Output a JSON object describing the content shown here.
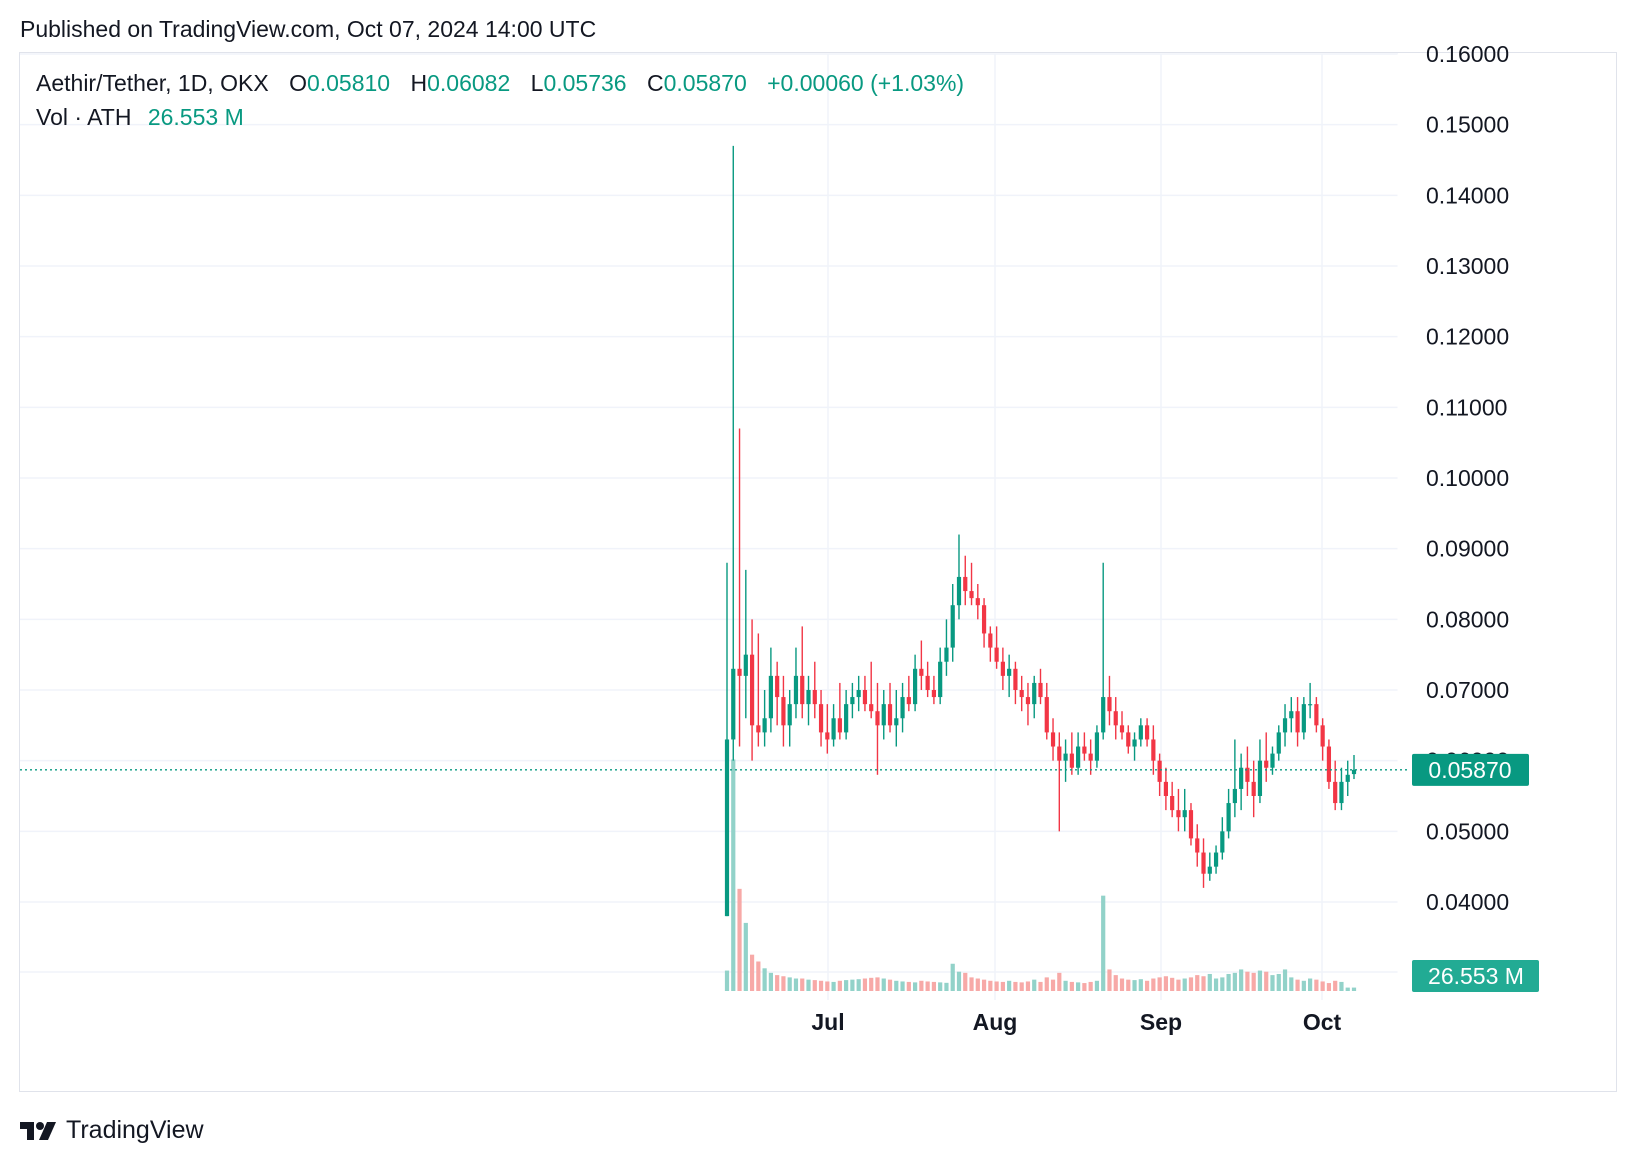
{
  "header": {
    "published": "Published on TradingView.com, Oct 07, 2024 14:00 UTC"
  },
  "legend": {
    "symbol": "Aethir/Tether, 1D, OKX",
    "o_label": "O",
    "o_value": "0.05810",
    "h_label": "H",
    "h_value": "0.06082",
    "l_label": "L",
    "l_value": "0.05736",
    "c_label": "C",
    "c_value": "0.05870",
    "change": "+0.00060 (+1.03%)",
    "vol_label": "Vol · ATH",
    "vol_value": "26.553 M"
  },
  "footer": {
    "brand": "TradingView"
  },
  "colors": {
    "up": "#089981",
    "down": "#f23645",
    "vol_up": "#92d2c9",
    "vol_down": "#f7a9a7",
    "grid": "#f0f3fa",
    "text": "#131722"
  },
  "chart_data": {
    "type": "candlestick",
    "ylim": [
      0.035,
      0.16
    ],
    "ytick_labels": [
      "0.04000",
      "0.05000",
      "0.06000",
      "0.07000",
      "0.08000",
      "0.09000",
      "0.10000",
      "0.11000",
      "0.12000",
      "0.13000",
      "0.14000",
      "0.15000",
      "0.16000"
    ],
    "xtick_labels": [
      "Jul",
      "Aug",
      "Sep",
      "Oct"
    ],
    "last_price_label": "0.05870",
    "last_price": 0.0587,
    "volume_label": "26.553 M",
    "candles": [
      [
        0.038,
        0.088,
        0.038,
        0.063
      ],
      [
        0.063,
        0.147,
        0.06,
        0.073
      ],
      [
        0.073,
        0.107,
        0.062,
        0.072
      ],
      [
        0.072,
        0.087,
        0.066,
        0.075
      ],
      [
        0.075,
        0.08,
        0.06,
        0.065
      ],
      [
        0.065,
        0.078,
        0.062,
        0.064
      ],
      [
        0.064,
        0.07,
        0.062,
        0.066
      ],
      [
        0.066,
        0.076,
        0.064,
        0.072
      ],
      [
        0.072,
        0.074,
        0.065,
        0.069
      ],
      [
        0.069,
        0.072,
        0.062,
        0.065
      ],
      [
        0.065,
        0.07,
        0.062,
        0.068
      ],
      [
        0.068,
        0.076,
        0.066,
        0.072
      ],
      [
        0.072,
        0.079,
        0.066,
        0.068
      ],
      [
        0.068,
        0.072,
        0.065,
        0.07
      ],
      [
        0.07,
        0.074,
        0.066,
        0.068
      ],
      [
        0.068,
        0.07,
        0.062,
        0.064
      ],
      [
        0.064,
        0.068,
        0.061,
        0.063
      ],
      [
        0.063,
        0.068,
        0.062,
        0.066
      ],
      [
        0.066,
        0.071,
        0.063,
        0.064
      ],
      [
        0.064,
        0.07,
        0.063,
        0.068
      ],
      [
        0.068,
        0.071,
        0.066,
        0.069
      ],
      [
        0.069,
        0.072,
        0.067,
        0.07
      ],
      [
        0.07,
        0.072,
        0.067,
        0.068
      ],
      [
        0.068,
        0.074,
        0.066,
        0.067
      ],
      [
        0.067,
        0.071,
        0.058,
        0.065
      ],
      [
        0.065,
        0.07,
        0.063,
        0.068
      ],
      [
        0.068,
        0.071,
        0.064,
        0.065
      ],
      [
        0.065,
        0.07,
        0.062,
        0.066
      ],
      [
        0.066,
        0.071,
        0.064,
        0.069
      ],
      [
        0.069,
        0.072,
        0.067,
        0.068
      ],
      [
        0.068,
        0.075,
        0.067,
        0.073
      ],
      [
        0.073,
        0.077,
        0.07,
        0.072
      ],
      [
        0.072,
        0.074,
        0.069,
        0.07
      ],
      [
        0.07,
        0.072,
        0.068,
        0.069
      ],
      [
        0.069,
        0.076,
        0.068,
        0.074
      ],
      [
        0.074,
        0.08,
        0.072,
        0.076
      ],
      [
        0.076,
        0.085,
        0.074,
        0.082
      ],
      [
        0.082,
        0.092,
        0.08,
        0.086
      ],
      [
        0.086,
        0.089,
        0.082,
        0.084
      ],
      [
        0.084,
        0.088,
        0.082,
        0.083
      ],
      [
        0.083,
        0.085,
        0.08,
        0.082
      ],
      [
        0.082,
        0.083,
        0.076,
        0.078
      ],
      [
        0.078,
        0.079,
        0.074,
        0.076
      ],
      [
        0.076,
        0.079,
        0.073,
        0.074
      ],
      [
        0.074,
        0.076,
        0.07,
        0.072
      ],
      [
        0.072,
        0.075,
        0.069,
        0.073
      ],
      [
        0.073,
        0.074,
        0.068,
        0.07
      ],
      [
        0.07,
        0.072,
        0.067,
        0.069
      ],
      [
        0.069,
        0.071,
        0.065,
        0.068
      ],
      [
        0.068,
        0.072,
        0.066,
        0.071
      ],
      [
        0.071,
        0.073,
        0.068,
        0.069
      ],
      [
        0.069,
        0.071,
        0.063,
        0.064
      ],
      [
        0.064,
        0.066,
        0.06,
        0.062
      ],
      [
        0.062,
        0.064,
        0.05,
        0.06
      ],
      [
        0.06,
        0.063,
        0.057,
        0.061
      ],
      [
        0.061,
        0.064,
        0.058,
        0.059
      ],
      [
        0.059,
        0.064,
        0.058,
        0.062
      ],
      [
        0.062,
        0.064,
        0.06,
        0.061
      ],
      [
        0.061,
        0.063,
        0.058,
        0.06
      ],
      [
        0.06,
        0.065,
        0.059,
        0.064
      ],
      [
        0.064,
        0.088,
        0.063,
        0.069
      ],
      [
        0.069,
        0.072,
        0.065,
        0.067
      ],
      [
        0.067,
        0.069,
        0.063,
        0.065
      ],
      [
        0.065,
        0.067,
        0.063,
        0.064
      ],
      [
        0.064,
        0.065,
        0.061,
        0.062
      ],
      [
        0.062,
        0.064,
        0.06,
        0.063
      ],
      [
        0.063,
        0.066,
        0.062,
        0.065
      ],
      [
        0.065,
        0.066,
        0.062,
        0.063
      ],
      [
        0.063,
        0.065,
        0.058,
        0.06
      ],
      [
        0.06,
        0.061,
        0.055,
        0.057
      ],
      [
        0.057,
        0.059,
        0.053,
        0.055
      ],
      [
        0.055,
        0.057,
        0.052,
        0.053
      ],
      [
        0.053,
        0.056,
        0.05,
        0.052
      ],
      [
        0.052,
        0.056,
        0.05,
        0.053
      ],
      [
        0.053,
        0.054,
        0.048,
        0.049
      ],
      [
        0.049,
        0.051,
        0.045,
        0.047
      ],
      [
        0.047,
        0.049,
        0.042,
        0.044
      ],
      [
        0.044,
        0.047,
        0.043,
        0.045
      ],
      [
        0.045,
        0.048,
        0.044,
        0.047
      ],
      [
        0.047,
        0.052,
        0.046,
        0.05
      ],
      [
        0.05,
        0.056,
        0.049,
        0.054
      ],
      [
        0.054,
        0.063,
        0.052,
        0.056
      ],
      [
        0.056,
        0.061,
        0.053,
        0.059
      ],
      [
        0.059,
        0.062,
        0.055,
        0.057
      ],
      [
        0.057,
        0.06,
        0.052,
        0.055
      ],
      [
        0.055,
        0.063,
        0.054,
        0.06
      ],
      [
        0.06,
        0.064,
        0.057,
        0.059
      ],
      [
        0.059,
        0.062,
        0.058,
        0.061
      ],
      [
        0.061,
        0.065,
        0.06,
        0.064
      ],
      [
        0.064,
        0.068,
        0.062,
        0.066
      ],
      [
        0.066,
        0.069,
        0.064,
        0.067
      ],
      [
        0.067,
        0.069,
        0.062,
        0.064
      ],
      [
        0.064,
        0.069,
        0.063,
        0.068
      ],
      [
        0.068,
        0.071,
        0.066,
        0.068
      ],
      [
        0.068,
        0.069,
        0.064,
        0.065
      ],
      [
        0.065,
        0.066,
        0.06,
        0.062
      ],
      [
        0.062,
        0.063,
        0.056,
        0.057
      ],
      [
        0.057,
        0.06,
        0.053,
        0.054
      ],
      [
        0.054,
        0.059,
        0.053,
        0.057
      ],
      [
        0.057,
        0.06,
        0.055,
        0.058
      ],
      [
        0.0581,
        0.0608,
        0.0574,
        0.0587
      ]
    ],
    "volumes": [
      90,
      1020,
      450,
      300,
      160,
      130,
      100,
      80,
      70,
      65,
      60,
      55,
      55,
      50,
      48,
      45,
      42,
      40,
      45,
      48,
      50,
      52,
      55,
      58,
      60,
      55,
      50,
      45,
      42,
      40,
      38,
      45,
      42,
      40,
      38,
      36,
      120,
      85,
      80,
      60,
      55,
      50,
      45,
      42,
      40,
      45,
      40,
      38,
      42,
      50,
      40,
      60,
      50,
      80,
      45,
      40,
      38,
      35,
      40,
      45,
      420,
      95,
      70,
      55,
      50,
      48,
      52,
      45,
      55,
      60,
      65,
      58,
      50,
      55,
      60,
      70,
      65,
      75,
      55,
      60,
      75,
      80,
      95,
      85,
      80,
      90,
      85,
      70,
      75,
      95,
      60,
      50,
      45,
      55,
      50,
      42,
      35,
      45,
      40,
      15,
      15
    ]
  }
}
